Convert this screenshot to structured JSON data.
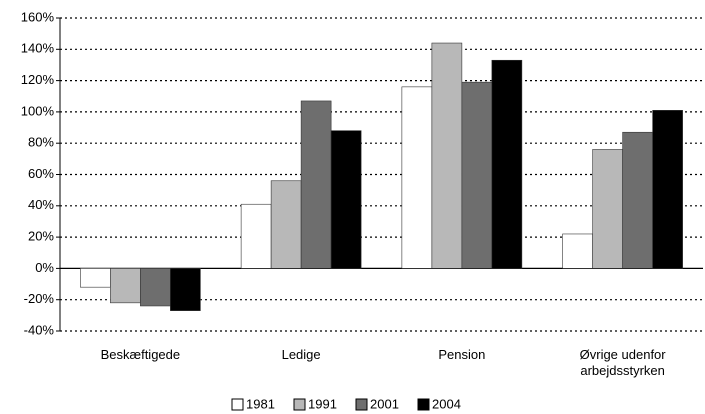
{
  "chart_data": {
    "type": "bar",
    "categories": [
      "Beskæftigede",
      "Ledige",
      "Pension",
      "Øvrige udenfor arbejdsstyrken"
    ],
    "series": [
      {
        "name": "1981",
        "color": "#ffffff",
        "values": [
          -12,
          41,
          116,
          22
        ]
      },
      {
        "name": "1991",
        "color": "#b8b8b8",
        "values": [
          -22,
          56,
          144,
          76
        ]
      },
      {
        "name": "2001",
        "color": "#6e6e6e",
        "values": [
          -24,
          107,
          119,
          87
        ]
      },
      {
        "name": "2004",
        "color": "#000000",
        "values": [
          -27,
          88,
          133,
          101
        ]
      }
    ],
    "ylim": [
      -40,
      160
    ],
    "yticks": [
      {
        "value": -40,
        "label": "-40%"
      },
      {
        "value": -20,
        "label": "-20%"
      },
      {
        "value": 0,
        "label": "0%"
      },
      {
        "value": 20,
        "label": "20%"
      },
      {
        "value": 40,
        "label": "40%"
      },
      {
        "value": 60,
        "label": "60%"
      },
      {
        "value": 80,
        "label": "80%"
      },
      {
        "value": 100,
        "label": "100%"
      },
      {
        "value": 120,
        "label": "120%"
      },
      {
        "value": 140,
        "label": "140%"
      },
      {
        "value": 160,
        "label": "160%"
      }
    ],
    "grid": true,
    "legend": "bottom"
  }
}
